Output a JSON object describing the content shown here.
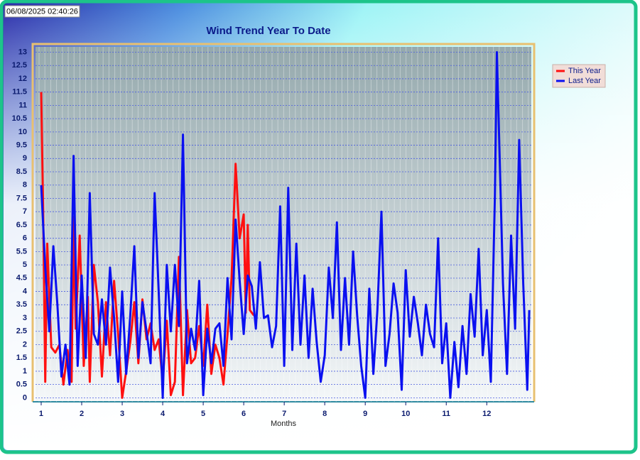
{
  "timestamp": "06/08/2025 02:40:26",
  "chart_data": {
    "type": "line",
    "title": "Wind Trend Year To Date",
    "x_label": "Months",
    "xlim": [
      0.86,
      13.1
    ],
    "xticks": [
      1,
      2,
      3,
      4,
      5,
      6,
      7,
      8,
      9,
      10,
      11,
      12
    ],
    "ylim": [
      -0.15,
      13.2
    ],
    "yticks": [
      0,
      0.5,
      1,
      1.5,
      2,
      2.5,
      3,
      3.5,
      4,
      4.5,
      5,
      5.5,
      6,
      6.5,
      7,
      7.5,
      8,
      8.5,
      9,
      9.5,
      10,
      10.5,
      11,
      11.5,
      12,
      12.5,
      13
    ],
    "grid": true,
    "legend": "upper right",
    "series": [
      {
        "name": "This Year",
        "color": "#ff1010",
        "x": [
          1.0,
          1.05,
          1.1,
          1.15,
          1.25,
          1.35,
          1.45,
          1.55,
          1.65,
          1.75,
          1.8,
          1.85,
          1.95,
          2.05,
          2.15,
          2.2,
          2.3,
          2.4,
          2.5,
          2.6,
          2.7,
          2.8,
          2.9,
          3.0,
          3.1,
          3.2,
          3.3,
          3.4,
          3.5,
          3.6,
          3.7,
          3.8,
          3.9,
          4.0,
          4.1,
          4.2,
          4.3,
          4.4,
          4.5,
          4.6,
          4.7,
          4.8,
          4.9,
          5.0,
          5.1,
          5.2,
          5.3,
          5.4,
          5.5,
          5.6,
          5.7,
          5.8,
          5.9,
          6.0,
          6.05,
          6.1,
          6.15,
          6.25
        ],
        "values": [
          11.5,
          7,
          0.6,
          5.8,
          1.9,
          1.7,
          2.0,
          0.5,
          1.8,
          0.6,
          6.8,
          2.6,
          6.1,
          1.2,
          3.8,
          0.6,
          5.0,
          3.6,
          0.8,
          3.6,
          1.6,
          4.4,
          2.4,
          0.0,
          1.0,
          2.1,
          3.6,
          1.3,
          3.7,
          2.2,
          2.8,
          1.8,
          2.2,
          0.6,
          2.9,
          0.1,
          0.6,
          5.3,
          0.1,
          3.3,
          1.3,
          1.5,
          2.7,
          1.2,
          3.5,
          0.9,
          2.0,
          1.5,
          0.5,
          2.4,
          4.5,
          8.8,
          6.0,
          6.9,
          3.2,
          6.5,
          3.3,
          3.1
        ]
      },
      {
        "name": "Last Year",
        "color": "#0a10f0",
        "x": [
          1.0,
          1.1,
          1.2,
          1.3,
          1.4,
          1.5,
          1.6,
          1.7,
          1.8,
          1.9,
          2.0,
          2.1,
          2.2,
          2.3,
          2.4,
          2.5,
          2.6,
          2.7,
          2.8,
          2.9,
          3.0,
          3.1,
          3.2,
          3.3,
          3.4,
          3.5,
          3.6,
          3.7,
          3.8,
          3.9,
          4.0,
          4.1,
          4.2,
          4.3,
          4.4,
          4.5,
          4.6,
          4.7,
          4.8,
          4.9,
          5.0,
          5.1,
          5.2,
          5.3,
          5.4,
          5.5,
          5.6,
          5.7,
          5.8,
          5.9,
          6.0,
          6.1,
          6.2,
          6.3,
          6.4,
          6.5,
          6.6,
          6.7,
          6.8,
          6.9,
          7.0,
          7.1,
          7.2,
          7.3,
          7.4,
          7.5,
          7.6,
          7.7,
          7.8,
          7.9,
          8.0,
          8.1,
          8.2,
          8.3,
          8.4,
          8.5,
          8.6,
          8.7,
          8.8,
          8.9,
          9.0,
          9.1,
          9.2,
          9.3,
          9.4,
          9.5,
          9.6,
          9.7,
          9.8,
          9.9,
          10.0,
          10.1,
          10.2,
          10.3,
          10.4,
          10.5,
          10.6,
          10.7,
          10.8,
          10.9,
          11.0,
          11.1,
          11.2,
          11.3,
          11.4,
          11.5,
          11.6,
          11.7,
          11.8,
          11.9,
          12.0,
          12.1,
          12.2,
          12.25,
          12.4,
          12.5,
          12.6,
          12.7,
          12.8,
          12.9,
          13.0,
          13.05
        ],
        "values": [
          8,
          4.9,
          2.5,
          5.7,
          3.5,
          0.8,
          2,
          0.5,
          9.1,
          1.2,
          4.6,
          1.5,
          7.7,
          2.4,
          2,
          3.7,
          2,
          4.9,
          3,
          0.6,
          4,
          0.9,
          3.1,
          5.7,
          1.5,
          3.6,
          2.5,
          1.3,
          7.7,
          4,
          0,
          5,
          2.5,
          5,
          2.7,
          9.9,
          1.3,
          2.6,
          1.8,
          4.4,
          0.1,
          2.6,
          1.3,
          2.6,
          2.8,
          1.2,
          4.5,
          2.2,
          6.7,
          4.4,
          2.4,
          4.6,
          4.2,
          2.6,
          5.1,
          3,
          3.1,
          1.9,
          2.7,
          7.2,
          1.2,
          7.9,
          1.8,
          5.8,
          2.0,
          4.6,
          1.5,
          4.1,
          2.1,
          0.6,
          1.6,
          4.9,
          3.0,
          6.6,
          1.8,
          4.5,
          2.0,
          5.5,
          3.1,
          1.2,
          0.0,
          4.1,
          0.9,
          3.3,
          7.0,
          1.2,
          2.4,
          4.3,
          3.2,
          0.3,
          4.8,
          2.3,
          3.8,
          2.8,
          1.6,
          3.5,
          2.4,
          1.9,
          6.0,
          1.3,
          2.8,
          0.0,
          2.1,
          0.4,
          2.7,
          0.9,
          3.9,
          2.3,
          5.6,
          1.6,
          3.3,
          0.6,
          7.6,
          13,
          4.3,
          0.9,
          6.1,
          2.6,
          9.7,
          4.3,
          0.3,
          3.3
        ]
      }
    ]
  }
}
